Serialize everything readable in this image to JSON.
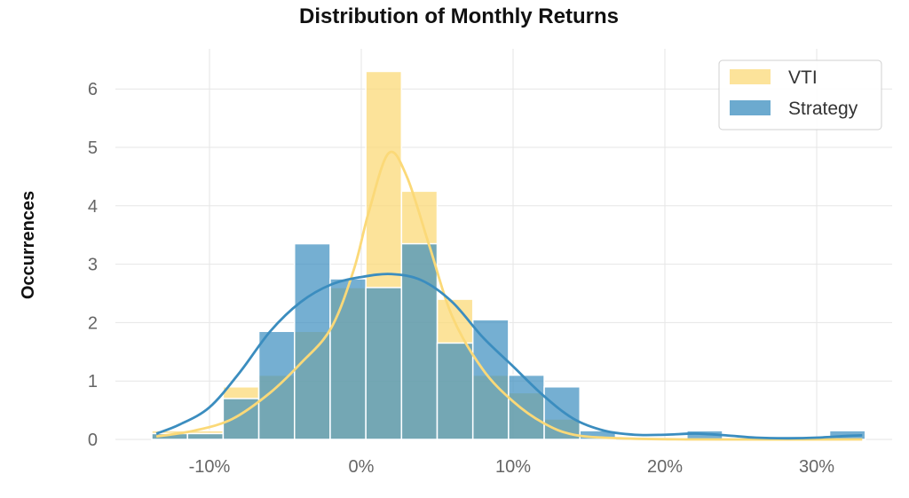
{
  "chart_data": {
    "type": "histogram",
    "title": "Distribution of Monthly Returns",
    "ylabel": "Occurrences",
    "xlabel": "",
    "x_unit": "%",
    "xlim": [
      -15,
      34
    ],
    "ylim": [
      0,
      6.6
    ],
    "x_ticks": [
      -10,
      0,
      10,
      20,
      30
    ],
    "x_tick_labels": [
      "-10%",
      "0%",
      "10%",
      "20%",
      "30%"
    ],
    "y_ticks": [
      0,
      1,
      2,
      3,
      4,
      5,
      6
    ],
    "y_tick_labels": [
      "0",
      "1",
      "2",
      "3",
      "4",
      "5",
      "6"
    ],
    "grid": true,
    "legend_position": "top-right",
    "bin_edges": [
      -13.8,
      -11.45,
      -9.1,
      -6.75,
      -4.4,
      -2.05,
      0.3,
      2.65,
      5.0,
      7.35,
      9.7,
      12.05,
      14.4,
      16.75,
      19.1,
      21.45,
      23.8,
      26.15,
      28.5,
      30.85,
      33.2
    ],
    "series": [
      {
        "name": "VTI",
        "color": "#fbd978",
        "values": [
          0.15,
          0.15,
          0.9,
          1.1,
          1.85,
          2.6,
          6.3,
          4.25,
          2.4,
          1.1,
          0.8,
          0.35,
          0,
          0,
          0,
          0,
          0,
          0,
          0,
          0
        ],
        "kde": [
          [
            -13.5,
            0.05
          ],
          [
            -11,
            0.15
          ],
          [
            -8.5,
            0.35
          ],
          [
            -6,
            0.8
          ],
          [
            -4,
            1.3
          ],
          [
            -2,
            1.9
          ],
          [
            -0.5,
            2.9
          ],
          [
            0.5,
            3.9
          ],
          [
            1.8,
            4.9
          ],
          [
            3,
            4.5
          ],
          [
            4.5,
            3.3
          ],
          [
            6,
            2.1
          ],
          [
            8,
            1.2
          ],
          [
            10,
            0.65
          ],
          [
            12,
            0.28
          ],
          [
            14,
            0.08
          ],
          [
            17,
            0.02
          ],
          [
            22,
            0.0
          ],
          [
            33,
            0.0
          ]
        ]
      },
      {
        "name": "Strategy",
        "color": "#3b8dbf",
        "values": [
          0.1,
          0.1,
          0.7,
          1.85,
          3.35,
          2.75,
          2.6,
          3.35,
          1.65,
          2.05,
          1.1,
          0.9,
          0.15,
          0,
          0,
          0.15,
          0,
          0,
          0,
          0.15
        ],
        "kde": [
          [
            -13.5,
            0.1
          ],
          [
            -12,
            0.25
          ],
          [
            -10,
            0.55
          ],
          [
            -8,
            1.15
          ],
          [
            -6,
            1.85
          ],
          [
            -4,
            2.35
          ],
          [
            -2,
            2.65
          ],
          [
            0,
            2.78
          ],
          [
            2,
            2.83
          ],
          [
            4,
            2.72
          ],
          [
            6,
            2.35
          ],
          [
            8,
            1.75
          ],
          [
            10,
            1.25
          ],
          [
            12,
            0.75
          ],
          [
            14,
            0.35
          ],
          [
            16,
            0.15
          ],
          [
            18,
            0.08
          ],
          [
            20,
            0.08
          ],
          [
            22,
            0.1
          ],
          [
            24,
            0.07
          ],
          [
            26,
            0.03
          ],
          [
            28,
            0.02
          ],
          [
            30,
            0.03
          ],
          [
            32,
            0.06
          ],
          [
            33,
            0.07
          ]
        ]
      }
    ]
  }
}
